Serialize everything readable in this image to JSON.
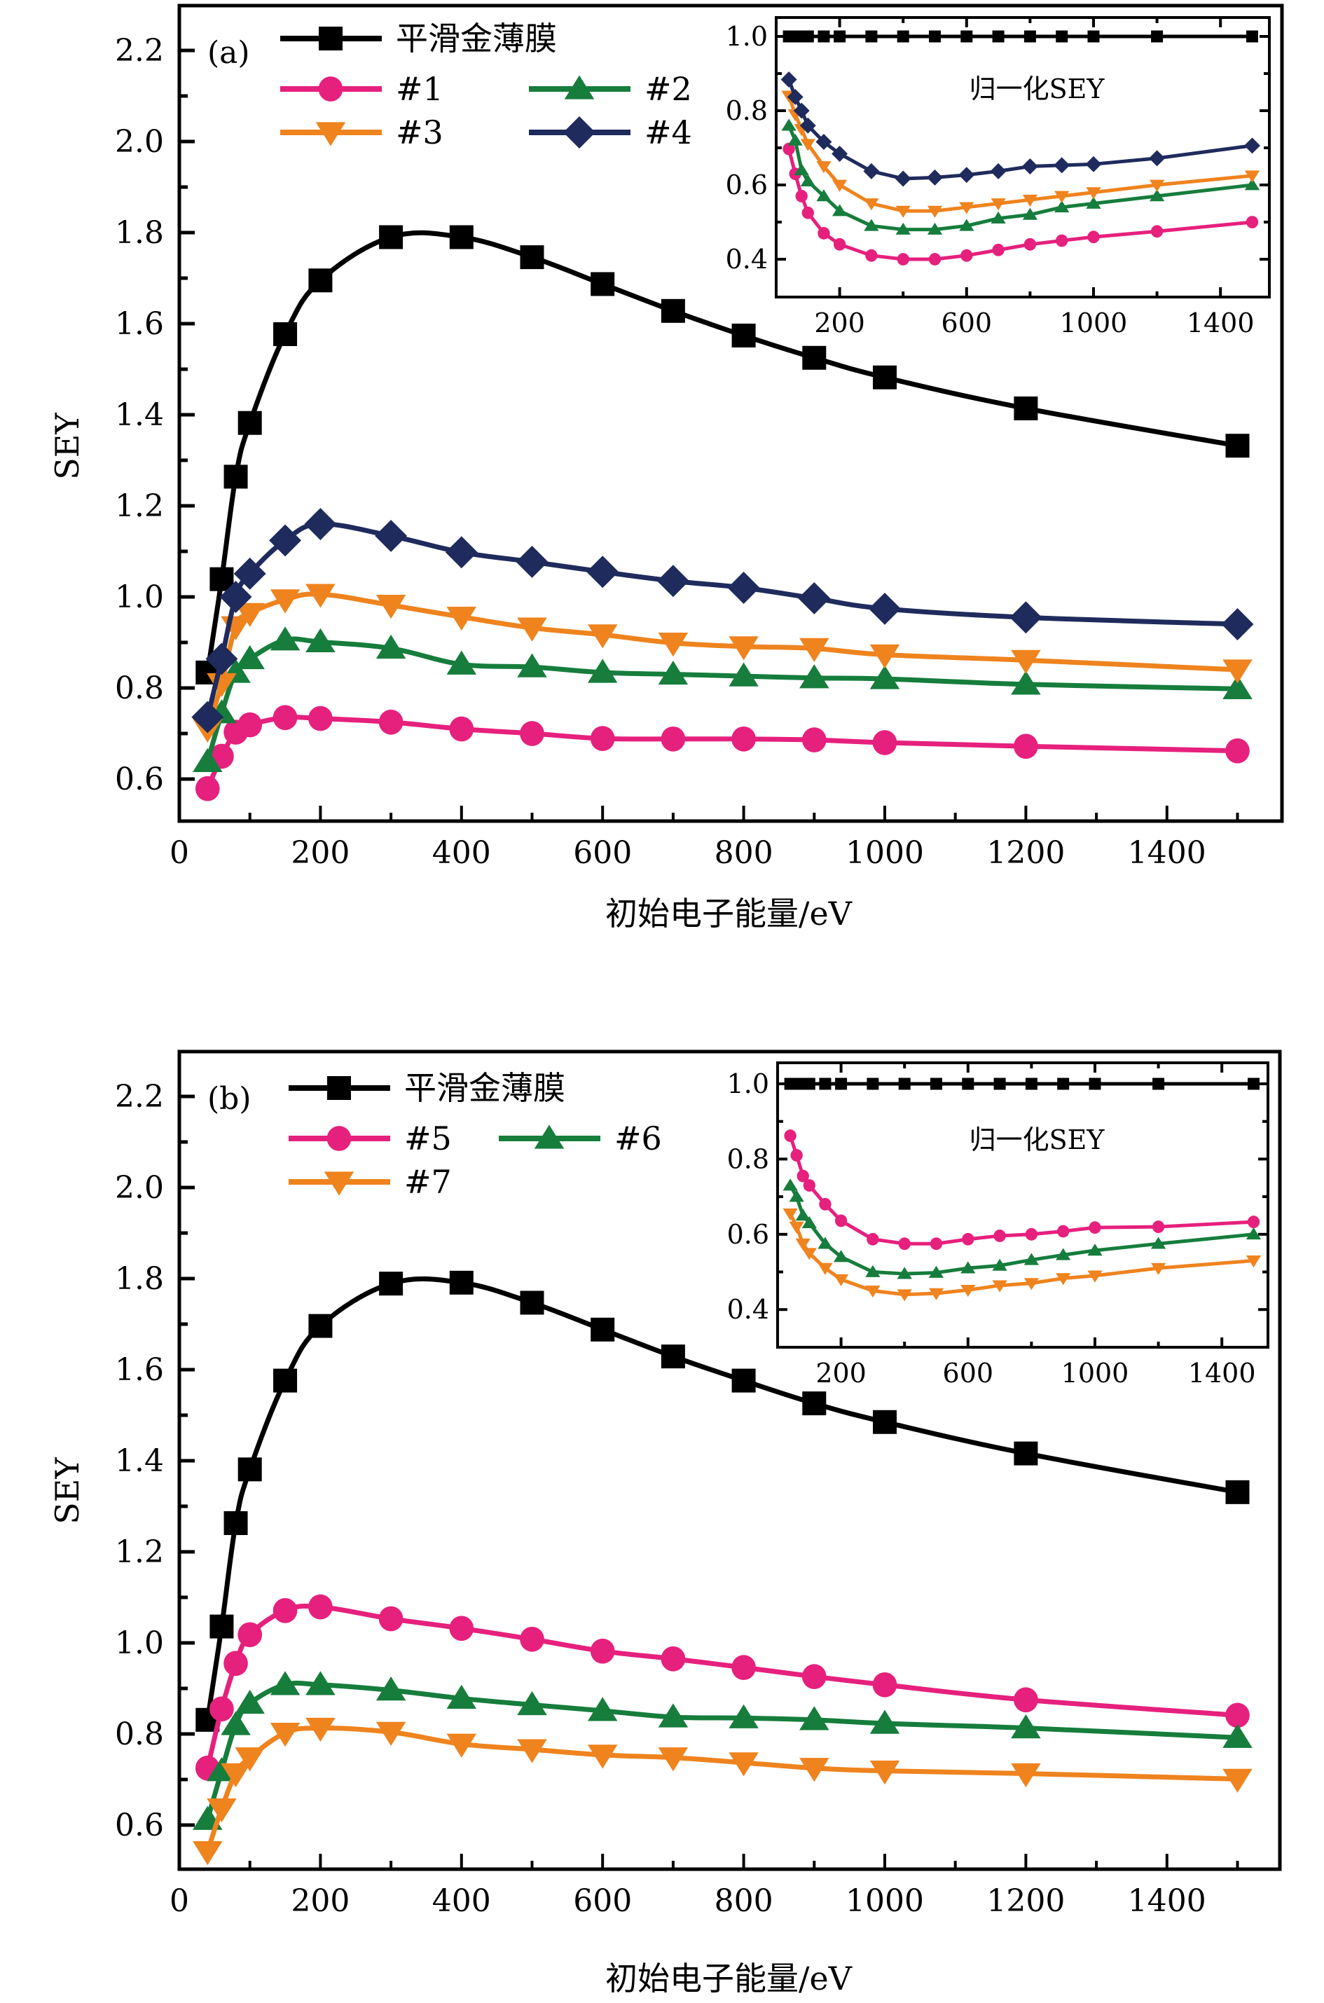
{
  "figure": {
    "panels": [
      "a",
      "b"
    ]
  },
  "colors": {
    "smooth": "#000000",
    "s1": "#e6207d",
    "s2": "#167d3c",
    "s3": "#ef831e",
    "s4": "#1f2b5c",
    "s5": "#e6207d",
    "s6": "#167d3c",
    "s7": "#ef831e"
  },
  "chart_data": [
    {
      "panel_label": "(a)",
      "type": "line",
      "xlabel": "初始电子能量/eV",
      "ylabel": "SEY",
      "xlim": [
        0,
        1550
      ],
      "ylim": [
        0.5,
        2.3
      ],
      "xticks": [
        0,
        200,
        400,
        600,
        800,
        1000,
        1200,
        1400
      ],
      "yticks": [
        0.6,
        0.8,
        1.0,
        1.2,
        1.4,
        1.6,
        1.8,
        2.0,
        2.2
      ],
      "legend_position": "top-left",
      "x": [
        40,
        60,
        80,
        100,
        150,
        200,
        300,
        400,
        500,
        600,
        700,
        800,
        900,
        1000,
        1200,
        1500
      ],
      "series": [
        {
          "name": "平滑金薄膜",
          "color_key": "smooth",
          "marker": "square",
          "values": [
            0.834,
            1.039,
            1.264,
            1.382,
            1.577,
            1.695,
            1.79,
            1.79,
            1.746,
            1.687,
            1.628,
            1.574,
            1.525,
            1.482,
            1.414,
            1.332
          ]
        },
        {
          "name": "#1",
          "color_key": "s1",
          "marker": "circle",
          "values": [
            0.579,
            0.65,
            0.703,
            0.719,
            0.735,
            0.733,
            0.725,
            0.71,
            0.7,
            0.689,
            0.688,
            0.688,
            0.686,
            0.68,
            0.672,
            0.662
          ]
        },
        {
          "name": "#2",
          "color_key": "s2",
          "marker": "triangle-up",
          "values": [
            0.638,
            0.745,
            0.834,
            0.864,
            0.905,
            0.901,
            0.887,
            0.852,
            0.846,
            0.834,
            0.83,
            0.826,
            0.822,
            0.82,
            0.808,
            0.798
          ]
        },
        {
          "name": "#3",
          "color_key": "s3",
          "marker": "triangle-down",
          "values": [
            0.71,
            0.81,
            0.935,
            0.964,
            0.994,
            1.006,
            0.982,
            0.956,
            0.932,
            0.917,
            0.899,
            0.891,
            0.887,
            0.873,
            0.861,
            0.84
          ]
        },
        {
          "name": "#4",
          "color_key": "s4",
          "marker": "diamond",
          "values": [
            0.736,
            0.864,
            1.0,
            1.051,
            1.124,
            1.16,
            1.134,
            1.098,
            1.077,
            1.055,
            1.035,
            1.02,
            0.997,
            0.974,
            0.955,
            0.94
          ]
        }
      ],
      "legend_rows": [
        [
          "平滑金薄膜"
        ],
        [
          "#1",
          "#2"
        ],
        [
          "#3",
          "#4"
        ]
      ],
      "inset": {
        "title": "归一化SEY",
        "type": "line",
        "xlim": [
          0,
          1550
        ],
        "ylim": [
          0.3,
          1.05
        ],
        "xticks": [
          200,
          600,
          1000,
          1400
        ],
        "xminor": [
          400,
          800,
          1200
        ],
        "yticks": [
          0.4,
          0.6,
          0.8,
          1.0
        ],
        "yminor": [
          0.5,
          0.7,
          0.9
        ],
        "x": [
          40,
          60,
          80,
          100,
          150,
          200,
          300,
          400,
          500,
          600,
          700,
          800,
          900,
          1000,
          1200,
          1500
        ],
        "series": [
          {
            "name": "平滑金薄膜",
            "color_key": "smooth",
            "marker": "square",
            "values": [
              1,
              1,
              1,
              1,
              1,
              1,
              1,
              1,
              1,
              1,
              1,
              1,
              1,
              1,
              1,
              1
            ]
          },
          {
            "name": "#1",
            "color_key": "s1",
            "marker": "circle",
            "values": [
              0.697,
              0.63,
              0.57,
              0.525,
              0.47,
              0.44,
              0.41,
              0.4,
              0.4,
              0.41,
              0.425,
              0.44,
              0.45,
              0.46,
              0.475,
              0.5
            ]
          },
          {
            "name": "#2",
            "color_key": "s2",
            "marker": "triangle-up",
            "values": [
              0.76,
              0.72,
              0.64,
              0.61,
              0.57,
              0.53,
              0.49,
              0.48,
              0.48,
              0.49,
              0.51,
              0.52,
              0.54,
              0.55,
              0.57,
              0.6
            ]
          },
          {
            "name": "#3",
            "color_key": "s3",
            "marker": "triangle-down",
            "values": [
              0.84,
              0.79,
              0.75,
              0.71,
              0.65,
              0.6,
              0.55,
              0.53,
              0.53,
              0.54,
              0.55,
              0.56,
              0.57,
              0.58,
              0.6,
              0.625
            ]
          },
          {
            "name": "#4",
            "color_key": "s4",
            "marker": "diamond",
            "values": [
              0.884,
              0.837,
              0.8,
              0.76,
              0.716,
              0.684,
              0.637,
              0.617,
              0.62,
              0.627,
              0.637,
              0.65,
              0.653,
              0.656,
              0.672,
              0.706
            ]
          }
        ]
      }
    },
    {
      "panel_label": "(b)",
      "type": "line",
      "xlabel": "初始电子能量/eV",
      "ylabel": "SEY",
      "xlim": [
        0,
        1550
      ],
      "ylim": [
        0.5,
        2.3
      ],
      "xticks": [
        0,
        200,
        400,
        600,
        800,
        1000,
        1200,
        1400
      ],
      "yticks": [
        0.6,
        0.8,
        1.0,
        1.2,
        1.4,
        1.6,
        1.8,
        2.0,
        2.2
      ],
      "legend_position": "top-left",
      "x": [
        40,
        60,
        80,
        100,
        150,
        200,
        300,
        400,
        500,
        600,
        700,
        800,
        900,
        1000,
        1200,
        1500
      ],
      "series": [
        {
          "name": "平滑金薄膜",
          "color_key": "smooth",
          "marker": "square",
          "values": [
            0.831,
            1.036,
            1.263,
            1.381,
            1.576,
            1.696,
            1.789,
            1.791,
            1.747,
            1.688,
            1.629,
            1.576,
            1.526,
            1.485,
            1.416,
            1.331
          ]
        },
        {
          "name": "#5",
          "color_key": "s5",
          "marker": "circle",
          "values": [
            0.725,
            0.855,
            0.955,
            1.018,
            1.071,
            1.079,
            1.053,
            1.032,
            1.008,
            0.982,
            0.965,
            0.946,
            0.926,
            0.908,
            0.875,
            0.841
          ]
        },
        {
          "name": "#6",
          "color_key": "s6",
          "marker": "triangle-up",
          "values": [
            0.612,
            0.719,
            0.82,
            0.867,
            0.908,
            0.908,
            0.896,
            0.878,
            0.864,
            0.851,
            0.837,
            0.835,
            0.831,
            0.823,
            0.813,
            0.792
          ]
        },
        {
          "name": "#7",
          "color_key": "s7",
          "marker": "triangle-down",
          "values": [
            0.542,
            0.636,
            0.713,
            0.748,
            0.802,
            0.813,
            0.804,
            0.778,
            0.766,
            0.754,
            0.748,
            0.737,
            0.725,
            0.719,
            0.713,
            0.701
          ]
        }
      ],
      "legend_rows": [
        [
          "平滑金薄膜"
        ],
        [
          "#5",
          "#6"
        ],
        [
          "#7"
        ]
      ],
      "inset": {
        "title": "归一化SEY",
        "type": "line",
        "xlim": [
          0,
          1550
        ],
        "ylim": [
          0.3,
          1.05
        ],
        "xticks": [
          200,
          600,
          1000,
          1400
        ],
        "xminor": [
          400,
          800,
          1200
        ],
        "yticks": [
          0.4,
          0.6,
          0.8,
          1.0
        ],
        "yminor": [
          0.5,
          0.7,
          0.9
        ],
        "x": [
          40,
          60,
          80,
          100,
          150,
          200,
          300,
          400,
          500,
          600,
          700,
          800,
          900,
          1000,
          1200,
          1500
        ],
        "series": [
          {
            "name": "平滑金薄膜",
            "color_key": "smooth",
            "marker": "square",
            "values": [
              1,
              1,
              1,
              1,
              1,
              1,
              1,
              1,
              1,
              1,
              1,
              1,
              1,
              1,
              1,
              1
            ]
          },
          {
            "name": "#5",
            "color_key": "s5",
            "marker": "circle",
            "values": [
              0.862,
              0.81,
              0.755,
              0.73,
              0.68,
              0.636,
              0.587,
              0.575,
              0.575,
              0.587,
              0.596,
              0.6,
              0.608,
              0.618,
              0.62,
              0.633
            ]
          },
          {
            "name": "#6",
            "color_key": "s6",
            "marker": "triangle-up",
            "values": [
              0.73,
              0.7,
              0.65,
              0.63,
              0.575,
              0.54,
              0.5,
              0.495,
              0.498,
              0.51,
              0.517,
              0.532,
              0.545,
              0.557,
              0.575,
              0.6
            ]
          },
          {
            "name": "#7",
            "color_key": "s7",
            "marker": "triangle-down",
            "values": [
              0.655,
              0.62,
              0.575,
              0.55,
              0.51,
              0.48,
              0.45,
              0.44,
              0.443,
              0.452,
              0.464,
              0.47,
              0.483,
              0.49,
              0.51,
              0.53
            ]
          }
        ]
      }
    }
  ]
}
